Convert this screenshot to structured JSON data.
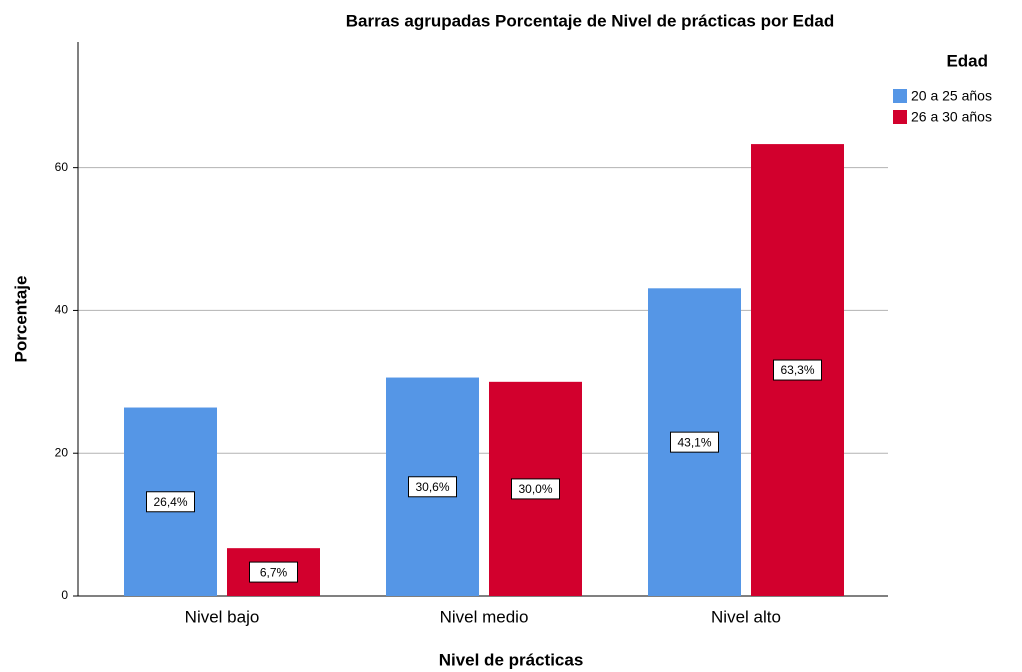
{
  "chart_data": {
    "type": "bar",
    "title": "Barras agrupadas Porcentaje de Nivel de prácticas  por Edad",
    "x_label": "Nivel de prácticas",
    "y_label": "Porcentaje",
    "legend_title": "Edad",
    "legend_position": "upper right",
    "categories": [
      "Nivel bajo",
      "Nivel medio",
      "Nivel alto"
    ],
    "series": [
      {
        "name": "20 a 25 años",
        "color": "#5596e6",
        "values": [
          26.4,
          30.6,
          43.1
        ],
        "value_labels": [
          "26,4%",
          "30,6%",
          "43,1%"
        ]
      },
      {
        "name": "26 a 30 años",
        "color": "#d2002d",
        "values": [
          6.7,
          30.0,
          63.3
        ],
        "value_labels": [
          "6,7%",
          "30,0%",
          "63,3%"
        ]
      }
    ],
    "ylim": [
      0,
      77.6
    ],
    "yticks": [
      0,
      20,
      40,
      60
    ],
    "grid": true
  }
}
